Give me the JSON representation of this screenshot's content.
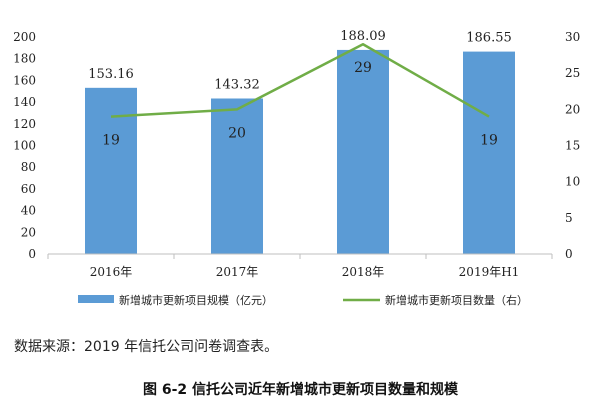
{
  "chart_data": {
    "type": "bar+line",
    "categories": [
      "2016年",
      "2017年",
      "2018年",
      "2019年H1"
    ],
    "series": [
      {
        "name": "新增城市更新项目规模（亿元）",
        "type": "bar",
        "axis": "left",
        "values": [
          153.16,
          143.32,
          188.09,
          186.55
        ],
        "value_labels": [
          "153.16",
          "143.32",
          "188.09",
          "186.55"
        ]
      },
      {
        "name": "新增城市更新项目数量（右）",
        "type": "line",
        "axis": "right",
        "values": [
          19,
          20,
          29,
          19
        ],
        "value_labels": [
          "19",
          "20",
          "29",
          "19"
        ]
      }
    ],
    "y_left": {
      "min": 0,
      "max": 200,
      "step": 20,
      "ticks": [
        "0",
        "20",
        "40",
        "60",
        "80",
        "100",
        "120",
        "140",
        "160",
        "180",
        "200"
      ]
    },
    "y_right": {
      "min": 0,
      "max": 30,
      "step": 5,
      "ticks": [
        "0",
        "5",
        "10",
        "15",
        "20",
        "25",
        "30"
      ]
    },
    "legend_position": "bottom",
    "grid": false,
    "colors": {
      "bar": "#5b9bd5",
      "line": "#70ad47",
      "axis": "#bfbfbf",
      "text": "#222222"
    }
  },
  "source_note": "数据来源：2019 年信托公司问卷调查表。",
  "caption": "图 6-2  信托公司近年新增城市更新项目数量和规模"
}
